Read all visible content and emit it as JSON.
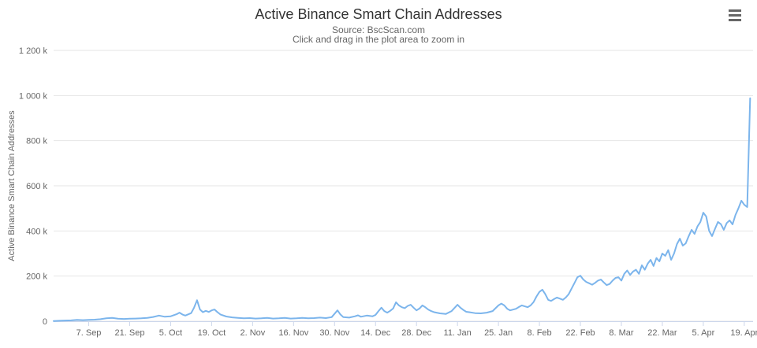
{
  "header": {
    "title": "Active Binance Smart Chain Addresses",
    "subtitle_line1": "Source: BscScan.com",
    "subtitle_line2": "Click and drag in the plot area to zoom in"
  },
  "toolbar": {
    "context_menu_icon": "hamburger-menu-icon"
  },
  "colors": {
    "line": "#7cb5ec",
    "grid": "#e6e6e6",
    "axis_line": "#ccd6eb",
    "tick_mark": "#ccd6eb",
    "title_text": "#333333",
    "subtitle_text": "#666666",
    "axis_label_text": "#666666",
    "axis_title_text": "#666666",
    "background": "#ffffff"
  },
  "chart_data": {
    "type": "line",
    "title": "Active Binance Smart Chain Addresses",
    "subtitle": "Source: BscScan.com — Click and drag in the plot area to zoom in",
    "xlabel": "",
    "ylabel": "Active Binance Smart Chain Addresses",
    "ylim": [
      0,
      1200000
    ],
    "grid": "horizontal-only",
    "legend": "none",
    "y_ticks": [
      {
        "value": 0,
        "label": "0"
      },
      {
        "value": 200000,
        "label": "200 k"
      },
      {
        "value": 400000,
        "label": "400 k"
      },
      {
        "value": 600000,
        "label": "600 k"
      },
      {
        "value": 800000,
        "label": "800 k"
      },
      {
        "value": 1000000,
        "label": "1 000 k"
      },
      {
        "value": 1200000,
        "label": "1 200 k"
      }
    ],
    "x_range": [
      "2020-08-26",
      "2021-04-22"
    ],
    "x_ticks": [
      {
        "date": "2020-09-07",
        "label": "7. Sep"
      },
      {
        "date": "2020-09-21",
        "label": "21. Sep"
      },
      {
        "date": "2020-10-05",
        "label": "5. Oct"
      },
      {
        "date": "2020-10-19",
        "label": "19. Oct"
      },
      {
        "date": "2020-11-02",
        "label": "2. Nov"
      },
      {
        "date": "2020-11-16",
        "label": "16. Nov"
      },
      {
        "date": "2020-11-30",
        "label": "30. Nov"
      },
      {
        "date": "2020-12-14",
        "label": "14. Dec"
      },
      {
        "date": "2020-12-28",
        "label": "28. Dec"
      },
      {
        "date": "2021-01-11",
        "label": "11. Jan"
      },
      {
        "date": "2021-01-25",
        "label": "25. Jan"
      },
      {
        "date": "2021-02-08",
        "label": "8. Feb"
      },
      {
        "date": "2021-02-22",
        "label": "22. Feb"
      },
      {
        "date": "2021-03-08",
        "label": "8. Mar"
      },
      {
        "date": "2021-03-22",
        "label": "22. Mar"
      },
      {
        "date": "2021-04-05",
        "label": "5. Apr"
      },
      {
        "date": "2021-04-19",
        "label": "19. Apr"
      }
    ],
    "series": [
      {
        "name": "Active Binance Smart Chain Addresses",
        "color": "#7cb5ec",
        "points": [
          [
            "2020-08-26",
            1000
          ],
          [
            "2020-08-28",
            2000
          ],
          [
            "2020-08-30",
            3000
          ],
          [
            "2020-09-01",
            4000
          ],
          [
            "2020-09-03",
            6000
          ],
          [
            "2020-09-05",
            5000
          ],
          [
            "2020-09-07",
            6000
          ],
          [
            "2020-09-09",
            7000
          ],
          [
            "2020-09-11",
            9000
          ],
          [
            "2020-09-13",
            13000
          ],
          [
            "2020-09-15",
            15000
          ],
          [
            "2020-09-17",
            11000
          ],
          [
            "2020-09-19",
            10000
          ],
          [
            "2020-09-21",
            11000
          ],
          [
            "2020-09-23",
            12000
          ],
          [
            "2020-09-25",
            13000
          ],
          [
            "2020-09-27",
            15000
          ],
          [
            "2020-09-29",
            19000
          ],
          [
            "2020-10-01",
            25000
          ],
          [
            "2020-10-03",
            20000
          ],
          [
            "2020-10-05",
            22000
          ],
          [
            "2020-10-07",
            31000
          ],
          [
            "2020-10-08",
            38000
          ],
          [
            "2020-10-09",
            30000
          ],
          [
            "2020-10-10",
            25000
          ],
          [
            "2020-10-12",
            36000
          ],
          [
            "2020-10-13",
            60000
          ],
          [
            "2020-10-14",
            93000
          ],
          [
            "2020-10-15",
            52000
          ],
          [
            "2020-10-16",
            40000
          ],
          [
            "2020-10-17",
            46000
          ],
          [
            "2020-10-18",
            41000
          ],
          [
            "2020-10-19",
            48000
          ],
          [
            "2020-10-20",
            52000
          ],
          [
            "2020-10-21",
            40000
          ],
          [
            "2020-10-22",
            30000
          ],
          [
            "2020-10-24",
            21000
          ],
          [
            "2020-10-26",
            17000
          ],
          [
            "2020-10-28",
            15000
          ],
          [
            "2020-10-30",
            13000
          ],
          [
            "2020-11-01",
            14000
          ],
          [
            "2020-11-03",
            12000
          ],
          [
            "2020-11-05",
            13000
          ],
          [
            "2020-11-07",
            15000
          ],
          [
            "2020-11-09",
            12000
          ],
          [
            "2020-11-11",
            13000
          ],
          [
            "2020-11-13",
            15000
          ],
          [
            "2020-11-15",
            12000
          ],
          [
            "2020-11-17",
            13000
          ],
          [
            "2020-11-19",
            15000
          ],
          [
            "2020-11-21",
            13000
          ],
          [
            "2020-11-23",
            14000
          ],
          [
            "2020-11-25",
            16000
          ],
          [
            "2020-11-27",
            14000
          ],
          [
            "2020-11-29",
            18000
          ],
          [
            "2020-12-01",
            48000
          ],
          [
            "2020-12-02",
            30000
          ],
          [
            "2020-12-03",
            18000
          ],
          [
            "2020-12-05",
            16000
          ],
          [
            "2020-12-07",
            22000
          ],
          [
            "2020-12-08",
            26000
          ],
          [
            "2020-12-09",
            20000
          ],
          [
            "2020-12-11",
            25000
          ],
          [
            "2020-12-13",
            22000
          ],
          [
            "2020-12-14",
            28000
          ],
          [
            "2020-12-15",
            45000
          ],
          [
            "2020-12-16",
            60000
          ],
          [
            "2020-12-17",
            45000
          ],
          [
            "2020-12-18",
            38000
          ],
          [
            "2020-12-19",
            46000
          ],
          [
            "2020-12-20",
            56000
          ],
          [
            "2020-12-21",
            84000
          ],
          [
            "2020-12-22",
            70000
          ],
          [
            "2020-12-23",
            62000
          ],
          [
            "2020-12-24",
            58000
          ],
          [
            "2020-12-25",
            68000
          ],
          [
            "2020-12-26",
            73000
          ],
          [
            "2020-12-27",
            60000
          ],
          [
            "2020-12-28",
            48000
          ],
          [
            "2020-12-29",
            56000
          ],
          [
            "2020-12-30",
            70000
          ],
          [
            "2020-12-31",
            62000
          ],
          [
            "2021-01-01",
            52000
          ],
          [
            "2021-01-02",
            45000
          ],
          [
            "2021-01-03",
            40000
          ],
          [
            "2021-01-05",
            35000
          ],
          [
            "2021-01-07",
            32000
          ],
          [
            "2021-01-09",
            45000
          ],
          [
            "2021-01-11",
            73000
          ],
          [
            "2021-01-12",
            60000
          ],
          [
            "2021-01-13",
            50000
          ],
          [
            "2021-01-14",
            42000
          ],
          [
            "2021-01-15",
            40000
          ],
          [
            "2021-01-17",
            36000
          ],
          [
            "2021-01-19",
            35000
          ],
          [
            "2021-01-21",
            38000
          ],
          [
            "2021-01-23",
            45000
          ],
          [
            "2021-01-25",
            70000
          ],
          [
            "2021-01-26",
            78000
          ],
          [
            "2021-01-27",
            70000
          ],
          [
            "2021-01-28",
            55000
          ],
          [
            "2021-01-29",
            48000
          ],
          [
            "2021-01-31",
            55000
          ],
          [
            "2021-02-01",
            63000
          ],
          [
            "2021-02-02",
            70000
          ],
          [
            "2021-02-03",
            66000
          ],
          [
            "2021-02-04",
            62000
          ],
          [
            "2021-02-05",
            70000
          ],
          [
            "2021-02-06",
            85000
          ],
          [
            "2021-02-07",
            110000
          ],
          [
            "2021-02-08",
            130000
          ],
          [
            "2021-02-09",
            140000
          ],
          [
            "2021-02-10",
            120000
          ],
          [
            "2021-02-11",
            95000
          ],
          [
            "2021-02-12",
            90000
          ],
          [
            "2021-02-13",
            98000
          ],
          [
            "2021-02-14",
            105000
          ],
          [
            "2021-02-15",
            100000
          ],
          [
            "2021-02-16",
            95000
          ],
          [
            "2021-02-17",
            105000
          ],
          [
            "2021-02-18",
            120000
          ],
          [
            "2021-02-19",
            145000
          ],
          [
            "2021-02-20",
            170000
          ],
          [
            "2021-02-21",
            195000
          ],
          [
            "2021-02-22",
            202000
          ],
          [
            "2021-02-23",
            185000
          ],
          [
            "2021-02-24",
            174000
          ],
          [
            "2021-02-25",
            168000
          ],
          [
            "2021-02-26",
            162000
          ],
          [
            "2021-02-27",
            170000
          ],
          [
            "2021-02-28",
            180000
          ],
          [
            "2021-03-01",
            185000
          ],
          [
            "2021-03-02",
            172000
          ],
          [
            "2021-03-03",
            160000
          ],
          [
            "2021-03-04",
            165000
          ],
          [
            "2021-03-05",
            180000
          ],
          [
            "2021-03-06",
            192000
          ],
          [
            "2021-03-07",
            195000
          ],
          [
            "2021-03-08",
            180000
          ],
          [
            "2021-03-09",
            210000
          ],
          [
            "2021-03-10",
            225000
          ],
          [
            "2021-03-11",
            205000
          ],
          [
            "2021-03-12",
            220000
          ],
          [
            "2021-03-13",
            228000
          ],
          [
            "2021-03-14",
            210000
          ],
          [
            "2021-03-15",
            248000
          ],
          [
            "2021-03-16",
            228000
          ],
          [
            "2021-03-17",
            255000
          ],
          [
            "2021-03-18",
            272000
          ],
          [
            "2021-03-19",
            245000
          ],
          [
            "2021-03-20",
            280000
          ],
          [
            "2021-03-21",
            265000
          ],
          [
            "2021-03-22",
            300000
          ],
          [
            "2021-03-23",
            290000
          ],
          [
            "2021-03-24",
            315000
          ],
          [
            "2021-03-25",
            272000
          ],
          [
            "2021-03-26",
            300000
          ],
          [
            "2021-03-27",
            342000
          ],
          [
            "2021-03-28",
            366000
          ],
          [
            "2021-03-29",
            335000
          ],
          [
            "2021-03-30",
            345000
          ],
          [
            "2021-03-31",
            377000
          ],
          [
            "2021-04-01",
            405000
          ],
          [
            "2021-04-02",
            387000
          ],
          [
            "2021-04-03",
            420000
          ],
          [
            "2021-04-04",
            440000
          ],
          [
            "2021-04-05",
            481000
          ],
          [
            "2021-04-06",
            464000
          ],
          [
            "2021-04-07",
            400000
          ],
          [
            "2021-04-08",
            377000
          ],
          [
            "2021-04-09",
            410000
          ],
          [
            "2021-04-10",
            440000
          ],
          [
            "2021-04-11",
            430000
          ],
          [
            "2021-04-12",
            405000
          ],
          [
            "2021-04-13",
            435000
          ],
          [
            "2021-04-14",
            447000
          ],
          [
            "2021-04-15",
            429000
          ],
          [
            "2021-04-16",
            471000
          ],
          [
            "2021-04-17",
            500000
          ],
          [
            "2021-04-18",
            534000
          ],
          [
            "2021-04-19",
            516000
          ],
          [
            "2021-04-20",
            506000
          ],
          [
            "2021-04-21",
            988000
          ]
        ]
      }
    ]
  }
}
